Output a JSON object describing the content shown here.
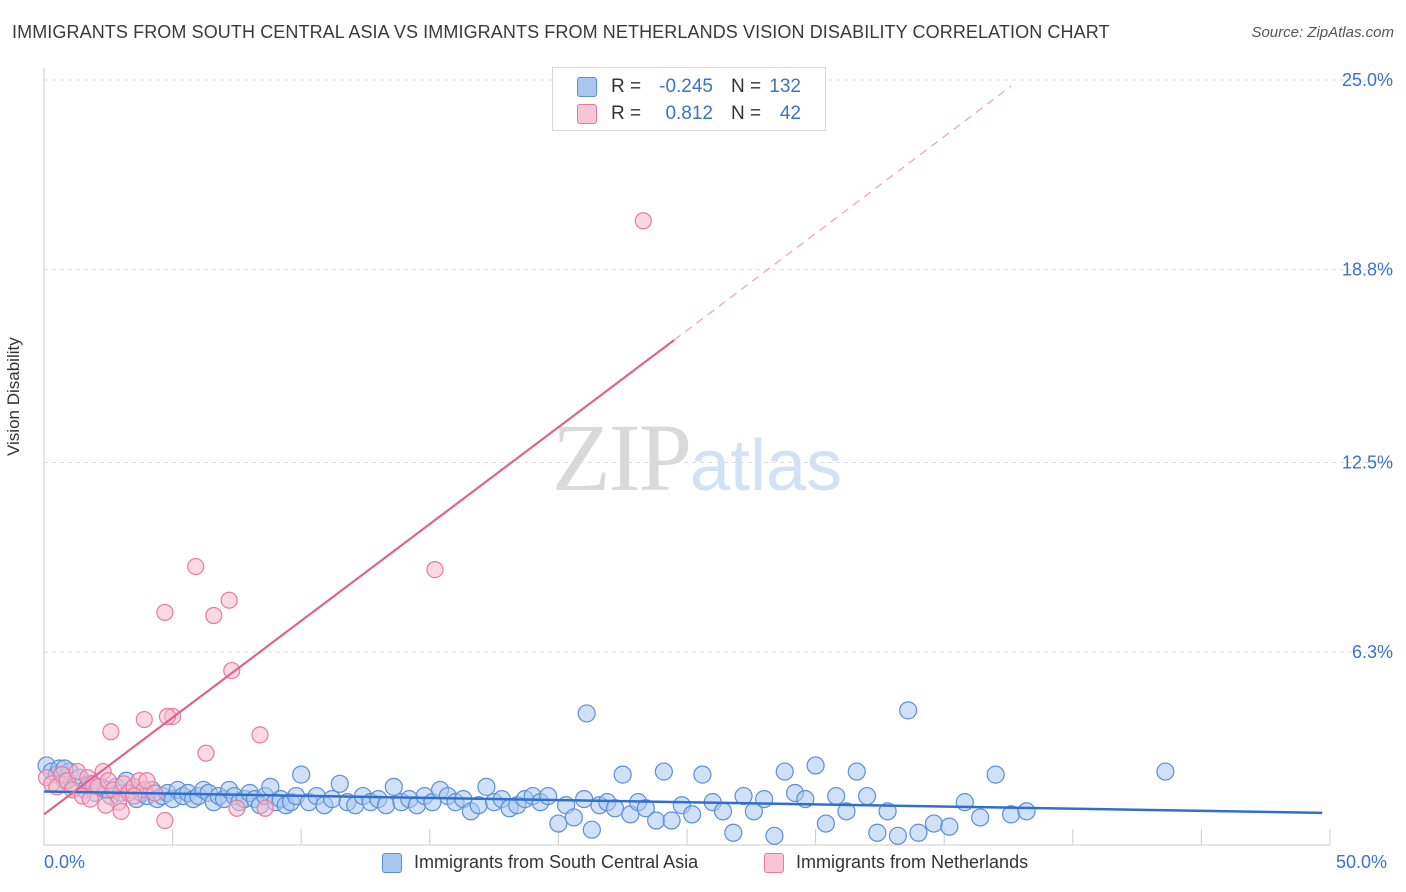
{
  "header": {
    "title": "IMMIGRANTS FROM SOUTH CENTRAL ASIA VS IMMIGRANTS FROM NETHERLANDS VISION DISABILITY CORRELATION CHART",
    "source": "Source: ZipAtlas.com"
  },
  "watermark": {
    "zip": "ZIP",
    "atlas": "atlas"
  },
  "legend": {
    "blue": {
      "r_label": "R =",
      "r_value": "-0.245",
      "n_label": "N =",
      "n_value": "132"
    },
    "pink": {
      "r_label": "R =",
      "r_value": "0.812",
      "n_label": "N =",
      "n_value": "42"
    }
  },
  "colors": {
    "blue": "#5b8fd8",
    "blue_fill": "#a9c6ef",
    "pink": "#e87aa0",
    "pink_fill": "#f6b9cd",
    "axis_text": "#3b73c8",
    "grid": "#dddddd"
  },
  "chart_data": {
    "type": "scatter",
    "title": "IMMIGRANTS FROM SOUTH CENTRAL ASIA VS IMMIGRANTS FROM NETHERLANDS VISION DISABILITY CORRELATION CHART",
    "xlabel": "",
    "ylabel": "Vision Disability",
    "xlim": [
      0,
      50
    ],
    "ylim": [
      0,
      25
    ],
    "x_tick_labels": [
      "0.0%",
      "50.0%"
    ],
    "y_ticks": [
      6.3,
      12.5,
      18.8,
      25.0
    ],
    "y_tick_labels": [
      "6.3%",
      "12.5%",
      "18.8%",
      "25.0%"
    ],
    "series": [
      {
        "name": "Immigrants from South Central Asia",
        "color": "blue",
        "trend": {
          "x": [
            0,
            49.7
          ],
          "y": [
            1.75,
            1.05
          ]
        },
        "points": [
          [
            0.1,
            2.6
          ],
          [
            0.3,
            2.4
          ],
          [
            0.5,
            2.3
          ],
          [
            0.6,
            2.5
          ],
          [
            0.8,
            2.1
          ],
          [
            1.0,
            2.4
          ],
          [
            1.2,
            1.9
          ],
          [
            1.4,
            2.2
          ],
          [
            1.6,
            1.8
          ],
          [
            1.8,
            2.0
          ],
          [
            2.0,
            1.7
          ],
          [
            2.2,
            1.9
          ],
          [
            2.4,
            1.8
          ],
          [
            2.6,
            1.6
          ],
          [
            2.8,
            1.9
          ],
          [
            3.0,
            1.7
          ],
          [
            3.2,
            2.1
          ],
          [
            3.4,
            1.8
          ],
          [
            3.6,
            1.5
          ],
          [
            3.8,
            1.7
          ],
          [
            4.0,
            1.6
          ],
          [
            4.2,
            1.8
          ],
          [
            4.4,
            1.5
          ],
          [
            4.6,
            1.6
          ],
          [
            4.8,
            1.7
          ],
          [
            5.0,
            1.5
          ],
          [
            5.2,
            1.8
          ],
          [
            5.4,
            1.6
          ],
          [
            5.6,
            1.7
          ],
          [
            5.8,
            1.5
          ],
          [
            6.0,
            1.6
          ],
          [
            6.2,
            1.8
          ],
          [
            6.4,
            1.7
          ],
          [
            6.6,
            1.4
          ],
          [
            6.8,
            1.6
          ],
          [
            7.0,
            1.5
          ],
          [
            7.2,
            1.8
          ],
          [
            7.4,
            1.6
          ],
          [
            7.6,
            1.4
          ],
          [
            7.8,
            1.5
          ],
          [
            8.0,
            1.7
          ],
          [
            8.2,
            1.5
          ],
          [
            8.4,
            1.3
          ],
          [
            8.6,
            1.6
          ],
          [
            8.8,
            1.9
          ],
          [
            9.0,
            1.4
          ],
          [
            9.2,
            1.5
          ],
          [
            9.4,
            1.3
          ],
          [
            9.6,
            1.4
          ],
          [
            9.8,
            1.6
          ],
          [
            10.0,
            2.3
          ],
          [
            10.3,
            1.4
          ],
          [
            10.6,
            1.6
          ],
          [
            10.9,
            1.3
          ],
          [
            11.2,
            1.5
          ],
          [
            11.5,
            2.0
          ],
          [
            11.8,
            1.4
          ],
          [
            12.1,
            1.3
          ],
          [
            12.4,
            1.6
          ],
          [
            12.7,
            1.4
          ],
          [
            13.0,
            1.5
          ],
          [
            13.3,
            1.3
          ],
          [
            13.6,
            1.9
          ],
          [
            13.9,
            1.4
          ],
          [
            14.2,
            1.5
          ],
          [
            14.5,
            1.3
          ],
          [
            14.8,
            1.6
          ],
          [
            15.1,
            1.4
          ],
          [
            15.4,
            1.8
          ],
          [
            15.7,
            1.6
          ],
          [
            16.0,
            1.4
          ],
          [
            16.3,
            1.5
          ],
          [
            16.6,
            1.1
          ],
          [
            16.9,
            1.3
          ],
          [
            17.2,
            1.9
          ],
          [
            17.5,
            1.4
          ],
          [
            17.8,
            1.5
          ],
          [
            18.1,
            1.2
          ],
          [
            18.4,
            1.3
          ],
          [
            18.7,
            1.5
          ],
          [
            19.0,
            1.6
          ],
          [
            19.3,
            1.4
          ],
          [
            19.6,
            1.6
          ],
          [
            20.0,
            0.7
          ],
          [
            20.3,
            1.3
          ],
          [
            20.6,
            0.9
          ],
          [
            21.0,
            1.5
          ],
          [
            21.3,
            0.5
          ],
          [
            21.6,
            1.3
          ],
          [
            21.9,
            1.4
          ],
          [
            22.2,
            1.2
          ],
          [
            22.5,
            2.3
          ],
          [
            22.8,
            1.0
          ],
          [
            23.1,
            1.4
          ],
          [
            23.4,
            1.2
          ],
          [
            23.8,
            0.8
          ],
          [
            24.1,
            2.4
          ],
          [
            24.4,
            0.8
          ],
          [
            24.8,
            1.3
          ],
          [
            25.2,
            1.0
          ],
          [
            25.6,
            2.3
          ],
          [
            26.0,
            1.4
          ],
          [
            26.4,
            1.1
          ],
          [
            26.8,
            0.4
          ],
          [
            27.2,
            1.6
          ],
          [
            27.6,
            1.1
          ],
          [
            28.0,
            1.5
          ],
          [
            28.4,
            0.3
          ],
          [
            28.8,
            2.4
          ],
          [
            29.2,
            1.7
          ],
          [
            29.6,
            1.5
          ],
          [
            30.0,
            2.6
          ],
          [
            30.4,
            0.7
          ],
          [
            30.8,
            1.6
          ],
          [
            31.2,
            1.1
          ],
          [
            31.6,
            2.4
          ],
          [
            32.0,
            1.6
          ],
          [
            32.4,
            0.4
          ],
          [
            32.8,
            1.1
          ],
          [
            33.2,
            0.3
          ],
          [
            33.6,
            4.4
          ],
          [
            34.0,
            0.4
          ],
          [
            34.6,
            0.7
          ],
          [
            35.2,
            0.6
          ],
          [
            35.8,
            1.4
          ],
          [
            36.4,
            0.9
          ],
          [
            37.0,
            2.3
          ],
          [
            37.6,
            1.0
          ],
          [
            38.2,
            1.1
          ],
          [
            43.6,
            2.4
          ],
          [
            21.1,
            4.3
          ],
          [
            0.8,
            2.5
          ]
        ]
      },
      {
        "name": "Immigrants from Netherlands",
        "color": "pink",
        "trend": {
          "x": [
            0,
            24.5
          ],
          "y": [
            1.0,
            16.5
          ]
        },
        "trend_dashed": {
          "x": [
            24.5,
            37.6
          ],
          "y": [
            16.5,
            24.8
          ]
        },
        "points": [
          [
            0.1,
            2.2
          ],
          [
            0.3,
            2.0
          ],
          [
            0.5,
            1.9
          ],
          [
            0.7,
            2.3
          ],
          [
            0.9,
            2.1
          ],
          [
            1.1,
            1.8
          ],
          [
            1.3,
            2.4
          ],
          [
            1.5,
            1.6
          ],
          [
            1.7,
            2.2
          ],
          [
            1.9,
            2.0
          ],
          [
            2.1,
            1.9
          ],
          [
            2.3,
            2.4
          ],
          [
            2.5,
            2.1
          ],
          [
            2.7,
            1.8
          ],
          [
            2.9,
            1.4
          ],
          [
            3.1,
            2.0
          ],
          [
            3.3,
            1.7
          ],
          [
            3.5,
            1.9
          ],
          [
            3.7,
            2.1
          ],
          [
            3.9,
            1.8
          ],
          [
            2.6,
            3.7
          ],
          [
            2.4,
            1.3
          ],
          [
            3.0,
            1.1
          ],
          [
            3.5,
            1.6
          ],
          [
            4.0,
            2.1
          ],
          [
            4.3,
            1.7
          ],
          [
            3.9,
            4.1
          ],
          [
            5.0,
            4.2
          ],
          [
            4.8,
            4.2
          ],
          [
            4.7,
            7.6
          ],
          [
            5.9,
            9.1
          ],
          [
            6.6,
            7.5
          ],
          [
            7.2,
            8.0
          ],
          [
            6.3,
            3.0
          ],
          [
            7.3,
            5.7
          ],
          [
            8.4,
            3.6
          ],
          [
            8.6,
            1.2
          ],
          [
            7.5,
            1.2
          ],
          [
            4.7,
            0.8
          ],
          [
            15.2,
            9.0
          ],
          [
            23.3,
            20.4
          ],
          [
            1.8,
            1.5
          ]
        ]
      }
    ]
  },
  "bottom_legend": {
    "blue_label": "Immigrants from South Central Asia",
    "pink_label": "Immigrants from Netherlands"
  }
}
